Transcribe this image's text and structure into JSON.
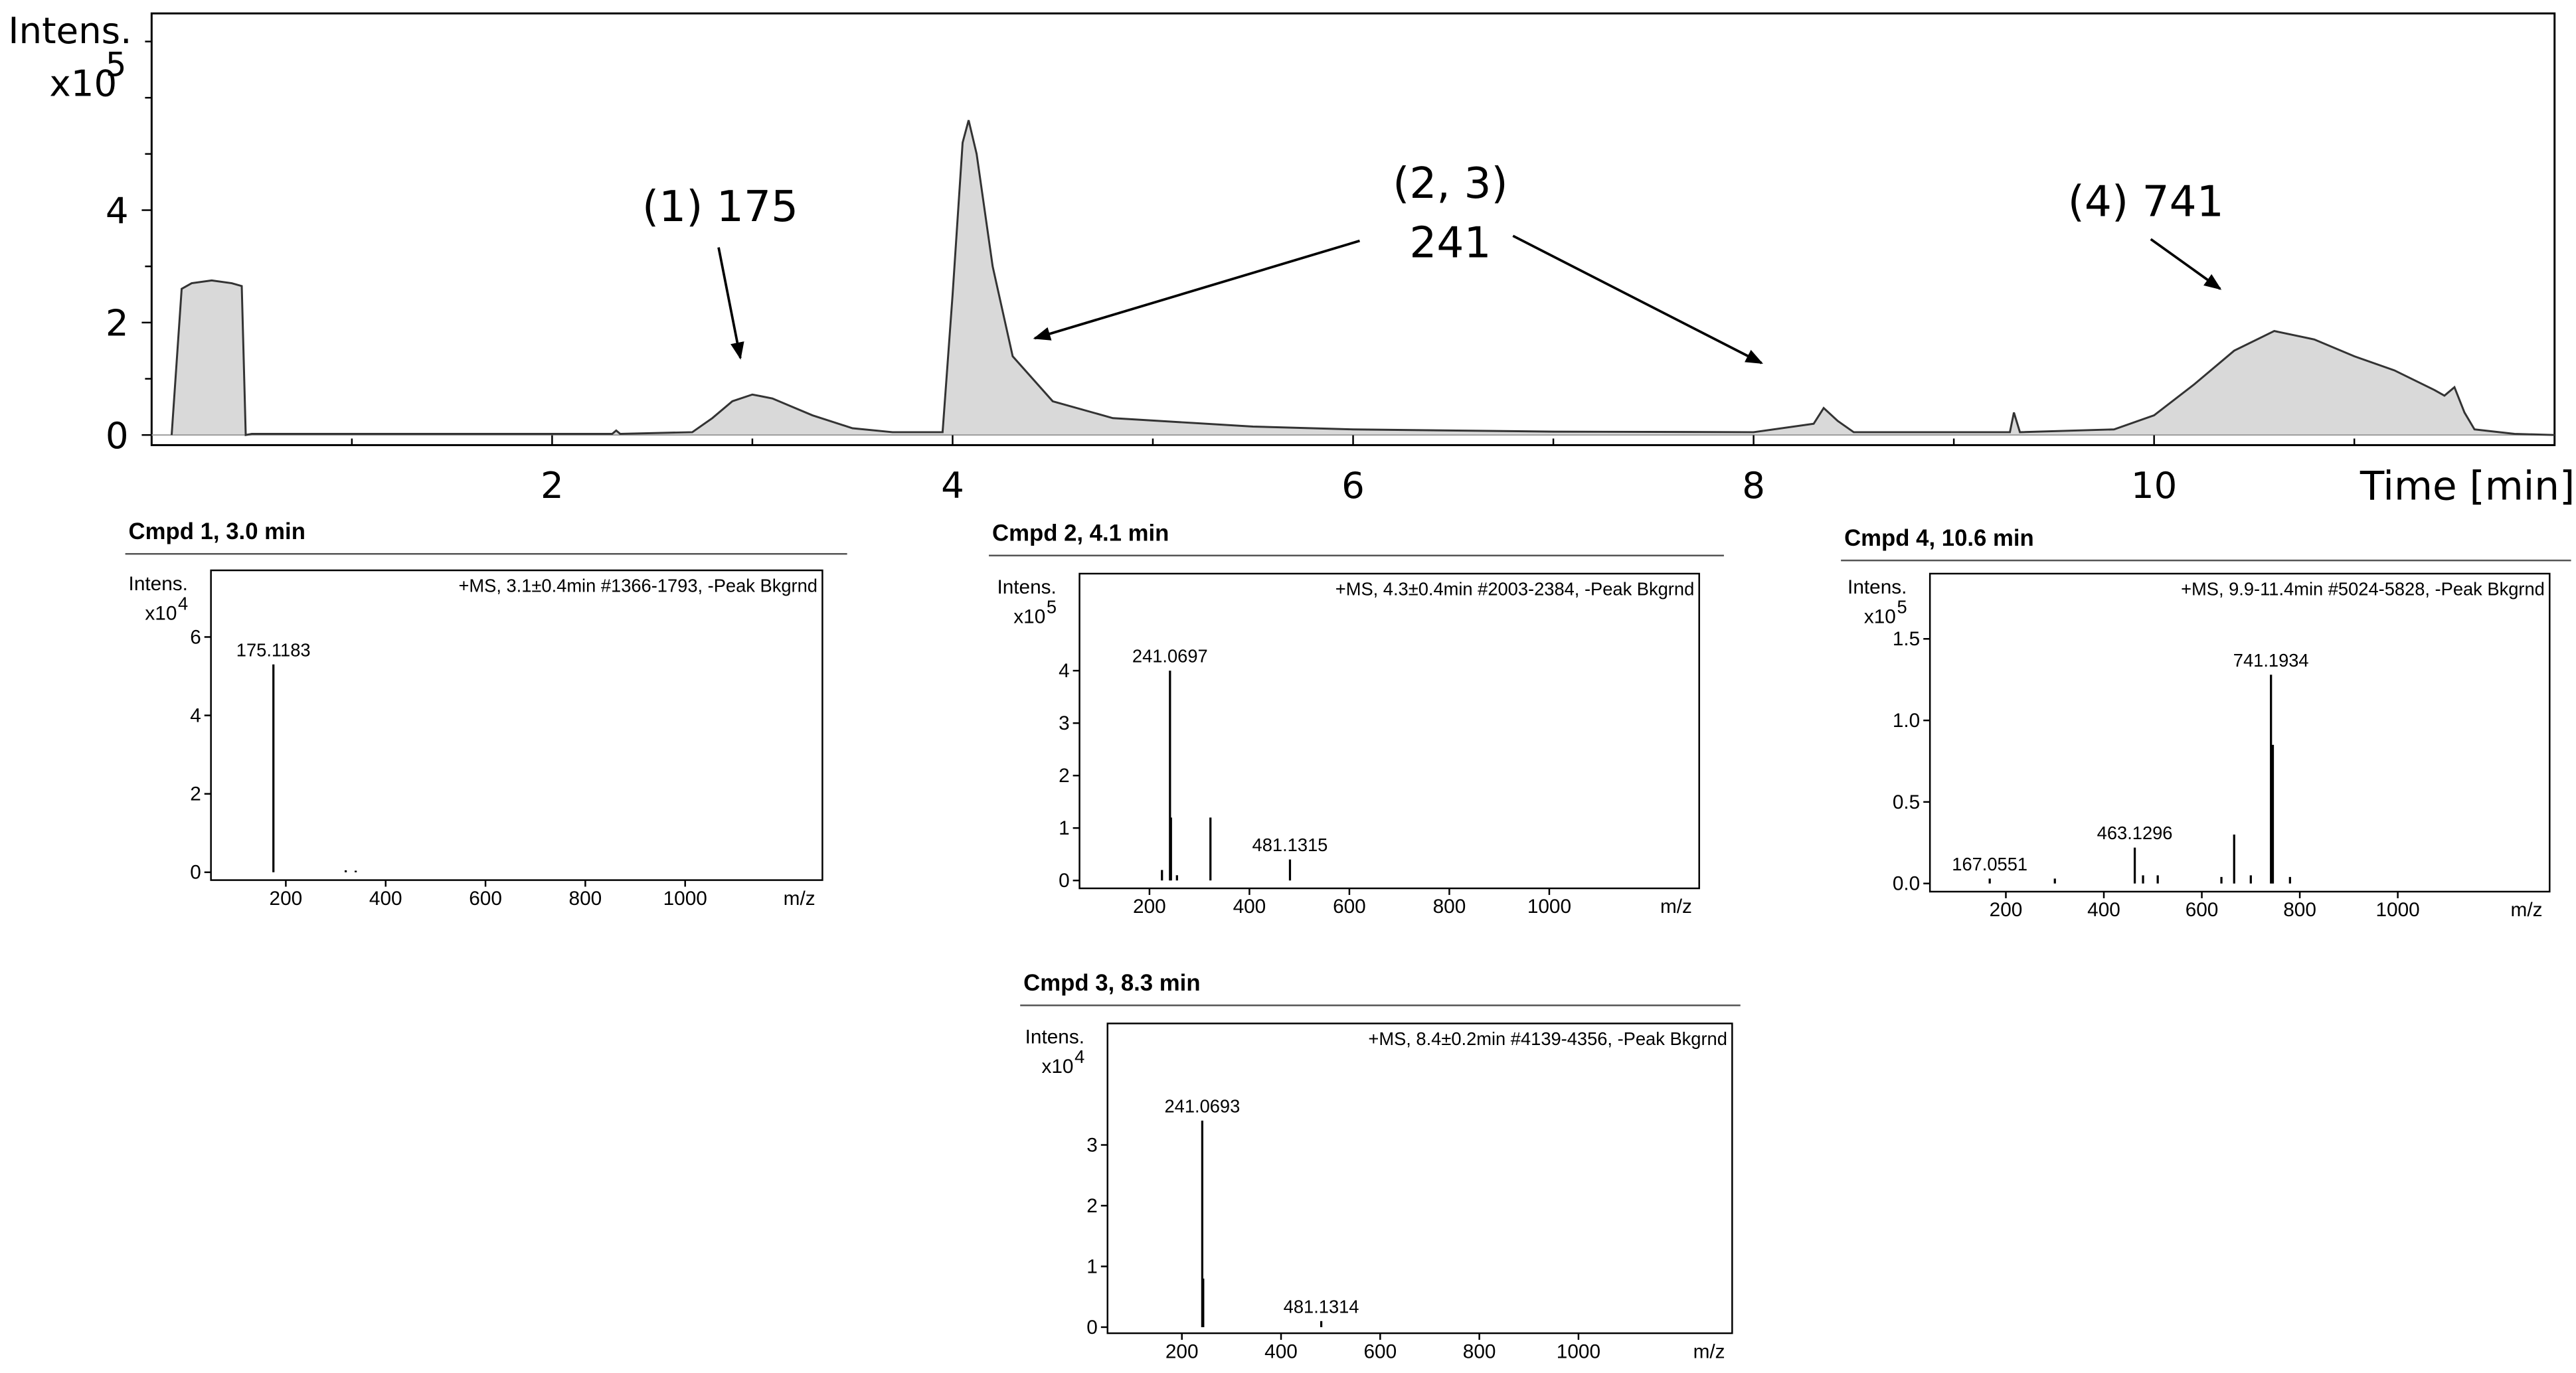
{
  "chart_data": [
    {
      "type": "line",
      "ylabel": "Intens.",
      "yscale_base": "x10",
      "yscale_exp": "5",
      "xlabel": "Time [min]",
      "xlim": [
        0,
        12
      ],
      "ylim": [
        -0.18,
        7.5
      ],
      "xticks": [
        2,
        4,
        6,
        8,
        10
      ],
      "xminorticks": [
        1,
        3,
        5,
        7,
        9,
        11
      ],
      "yticks": [
        0,
        2,
        4
      ],
      "yminorticks": [
        1,
        3,
        5,
        6,
        7
      ],
      "color": "#333333",
      "fill": "#d9d9d9",
      "x": [
        0.1,
        0.15,
        0.2,
        0.3,
        0.4,
        0.45,
        0.47,
        0.5,
        2.3,
        2.32,
        2.34,
        2.7,
        2.8,
        2.9,
        3.0,
        3.1,
        3.2,
        3.3,
        3.5,
        3.7,
        3.95,
        4.0,
        4.05,
        4.08,
        4.12,
        4.2,
        4.3,
        4.5,
        4.8,
        5.5,
        6,
        7,
        8.0,
        8.3,
        8.35,
        8.42,
        8.5,
        9.0,
        9.28,
        9.3,
        9.33,
        9.8,
        10.0,
        10.2,
        10.4,
        10.6,
        10.8,
        11.0,
        11.2,
        11.4,
        11.45,
        11.5,
        11.55,
        11.6,
        11.8,
        12
      ],
      "values": [
        0,
        2.6,
        2.7,
        2.75,
        2.7,
        2.65,
        0,
        0.02,
        0.02,
        0.08,
        0.02,
        0.05,
        0.3,
        0.6,
        0.72,
        0.65,
        0.5,
        0.35,
        0.12,
        0.05,
        0.05,
        2.5,
        5.2,
        5.6,
        5.0,
        3.0,
        1.4,
        0.6,
        0.3,
        0.15,
        0.1,
        0.06,
        0.05,
        0.2,
        0.48,
        0.25,
        0.05,
        0.05,
        0.05,
        0.4,
        0.05,
        0.1,
        0.35,
        0.9,
        1.5,
        1.85,
        1.7,
        1.4,
        1.15,
        0.8,
        0.7,
        0.85,
        0.4,
        0.1,
        0.02,
        0
      ],
      "annotations": [
        {
          "lines": [
            "(1) 175"
          ],
          "arrows": [
            [
              2.94,
              1.37
            ]
          ]
        },
        {
          "lines": [
            "(2, 3)",
            "241"
          ],
          "arrows": [
            [
              4.41,
              1.72
            ],
            [
              8.04,
              1.28
            ]
          ]
        },
        {
          "lines": [
            "(4) 741"
          ],
          "arrows": [
            [
              10.33,
              2.6
            ]
          ]
        }
      ]
    },
    {
      "type": "stem",
      "title": "Cmpd 1, 3.0 min",
      "header": "+MS, 3.1±0.4min #1366-1793, -Peak Bkgrnd",
      "ylabel": "Intens.",
      "yscale_base": "x10",
      "yscale_exp": "4",
      "xlabel": "m/z",
      "xlim": [
        50,
        1275
      ],
      "ylim": [
        -0.2,
        7.7
      ],
      "xticks": [
        200,
        400,
        600,
        800,
        1000
      ],
      "yticks": [
        0,
        2,
        4,
        6
      ],
      "x": [
        175.1183,
        320,
        340
      ],
      "values": [
        5.3,
        0.05,
        0.04
      ],
      "value_labels": [
        "175.1183",
        null,
        null
      ]
    },
    {
      "type": "stem",
      "title": "Cmpd 2, 4.1 min",
      "header": "+MS, 4.3±0.4min #2003-2384, -Peak Bkgrnd",
      "ylabel": "Intens.",
      "yscale_base": "x10",
      "yscale_exp": "5",
      "xlabel": "m/z",
      "xlim": [
        60,
        1300
      ],
      "ylim": [
        -0.15,
        5.85
      ],
      "xticks": [
        200,
        400,
        600,
        800,
        1000
      ],
      "yticks": [
        0,
        1,
        2,
        3,
        4
      ],
      "x": [
        225,
        241.0697,
        243,
        255,
        322,
        481.1315
      ],
      "values": [
        0.2,
        4.0,
        1.2,
        0.1,
        1.2,
        0.4
      ],
      "value_labels": [
        null,
        "241.0697",
        null,
        null,
        null,
        "481.1315"
      ]
    },
    {
      "type": "stem",
      "title": "Cmpd 3, 8.3 min",
      "header": "+MS, 8.4±0.2min #4139-4356, -Peak Bkgrnd",
      "ylabel": "Intens.",
      "yscale_base": "x10",
      "yscale_exp": "4",
      "xlabel": "m/z",
      "xlim": [
        50,
        1310
      ],
      "ylim": [
        -0.1,
        5.0
      ],
      "xticks": [
        200,
        400,
        600,
        800,
        1000
      ],
      "yticks": [
        0,
        1,
        2,
        3
      ],
      "x": [
        241.0693,
        243,
        481.1314
      ],
      "values": [
        3.4,
        0.8,
        0.1
      ],
      "value_labels": [
        "241.0693",
        null,
        "481.1314"
      ]
    },
    {
      "type": "stem",
      "title": "Cmpd 4, 10.6 min",
      "header": "+MS, 9.9-11.4min #5024-5828, -Peak Bkgrnd",
      "ylabel": "Intens.",
      "yscale_base": "x10",
      "yscale_exp": "5",
      "xlabel": "m/z",
      "xlim": [
        45,
        1310
      ],
      "ylim": [
        -0.05,
        1.9
      ],
      "xticks": [
        200,
        400,
        600,
        800,
        1000
      ],
      "yticks": [
        {
          "value": 0,
          "label": "0.0"
        },
        0.5,
        {
          "value": 1,
          "label": "1.0"
        },
        1.5
      ],
      "x": [
        167.0551,
        300,
        463.1296,
        480,
        510,
        640,
        666,
        700,
        741.1934,
        745,
        780
      ],
      "values": [
        0.03,
        0.03,
        0.22,
        0.05,
        0.05,
        0.04,
        0.3,
        0.05,
        1.28,
        0.85,
        0.04
      ],
      "value_labels": [
        "167.0551",
        null,
        "463.1296",
        null,
        null,
        null,
        null,
        null,
        "741.1934",
        null,
        null
      ]
    }
  ]
}
